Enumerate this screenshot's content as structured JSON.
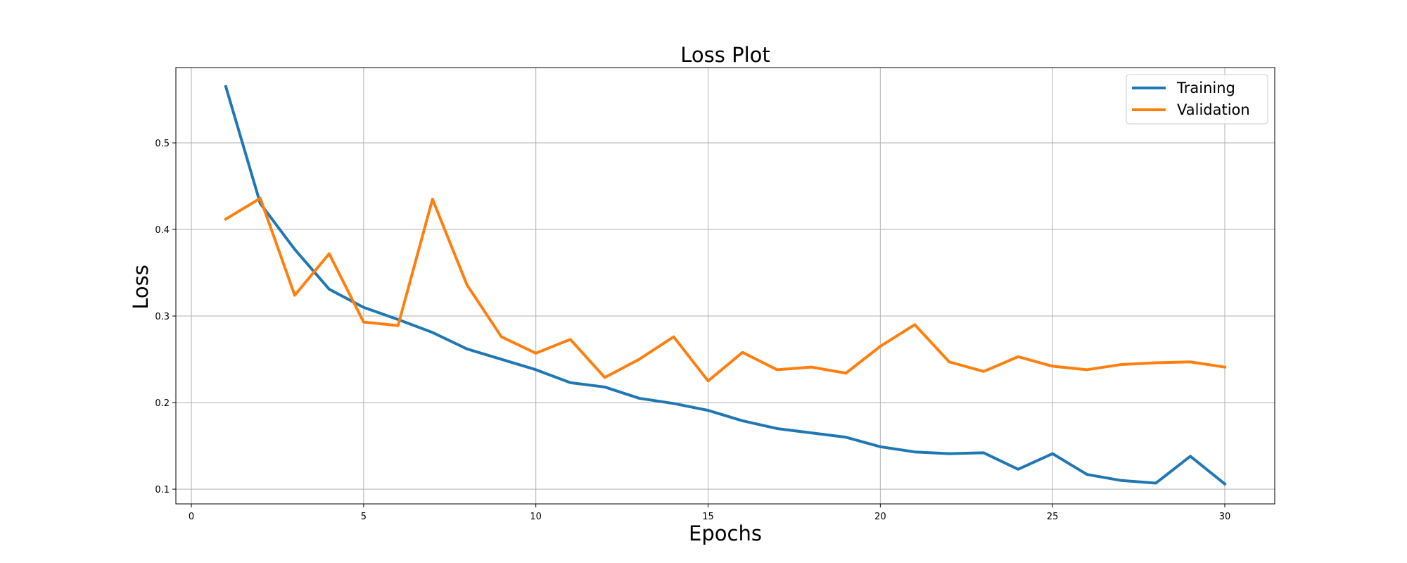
{
  "chart_data": {
    "type": "line",
    "title": "Loss Plot",
    "xlabel": "Epochs",
    "ylabel": "Loss",
    "x": [
      1,
      2,
      3,
      4,
      5,
      6,
      7,
      8,
      9,
      10,
      11,
      12,
      13,
      14,
      15,
      16,
      17,
      18,
      19,
      20,
      21,
      22,
      23,
      24,
      25,
      26,
      27,
      28,
      29,
      30
    ],
    "xlim": [
      -0.45,
      31.45
    ],
    "ylim": [
      0.083,
      0.587
    ],
    "xticks": [
      0,
      5,
      10,
      15,
      20,
      25,
      30
    ],
    "yticks": [
      0.1,
      0.2,
      0.3,
      0.4,
      0.5
    ],
    "xtick_labels": [
      "0",
      "5",
      "10",
      "15",
      "20",
      "25",
      "30"
    ],
    "ytick_labels": [
      "0.1",
      "0.2",
      "0.3",
      "0.4",
      "0.5"
    ],
    "grid": true,
    "legend_position": "top-right",
    "series": [
      {
        "name": "Training",
        "color": "#1f77b4",
        "values": [
          0.565,
          0.43,
          0.377,
          0.331,
          0.31,
          0.296,
          0.281,
          0.262,
          0.25,
          0.238,
          0.223,
          0.218,
          0.205,
          0.199,
          0.191,
          0.179,
          0.17,
          0.165,
          0.16,
          0.149,
          0.143,
          0.141,
          0.142,
          0.123,
          0.141,
          0.117,
          0.11,
          0.107,
          0.138,
          0.106
        ]
      },
      {
        "name": "Validation",
        "color": "#ff7f0e",
        "values": [
          0.412,
          0.436,
          0.324,
          0.372,
          0.293,
          0.289,
          0.435,
          0.336,
          0.276,
          0.257,
          0.273,
          0.229,
          0.25,
          0.276,
          0.225,
          0.258,
          0.238,
          0.241,
          0.234,
          0.265,
          0.29,
          0.247,
          0.236,
          0.253,
          0.242,
          0.238,
          0.244,
          0.246,
          0.247,
          0.241
        ]
      }
    ]
  }
}
